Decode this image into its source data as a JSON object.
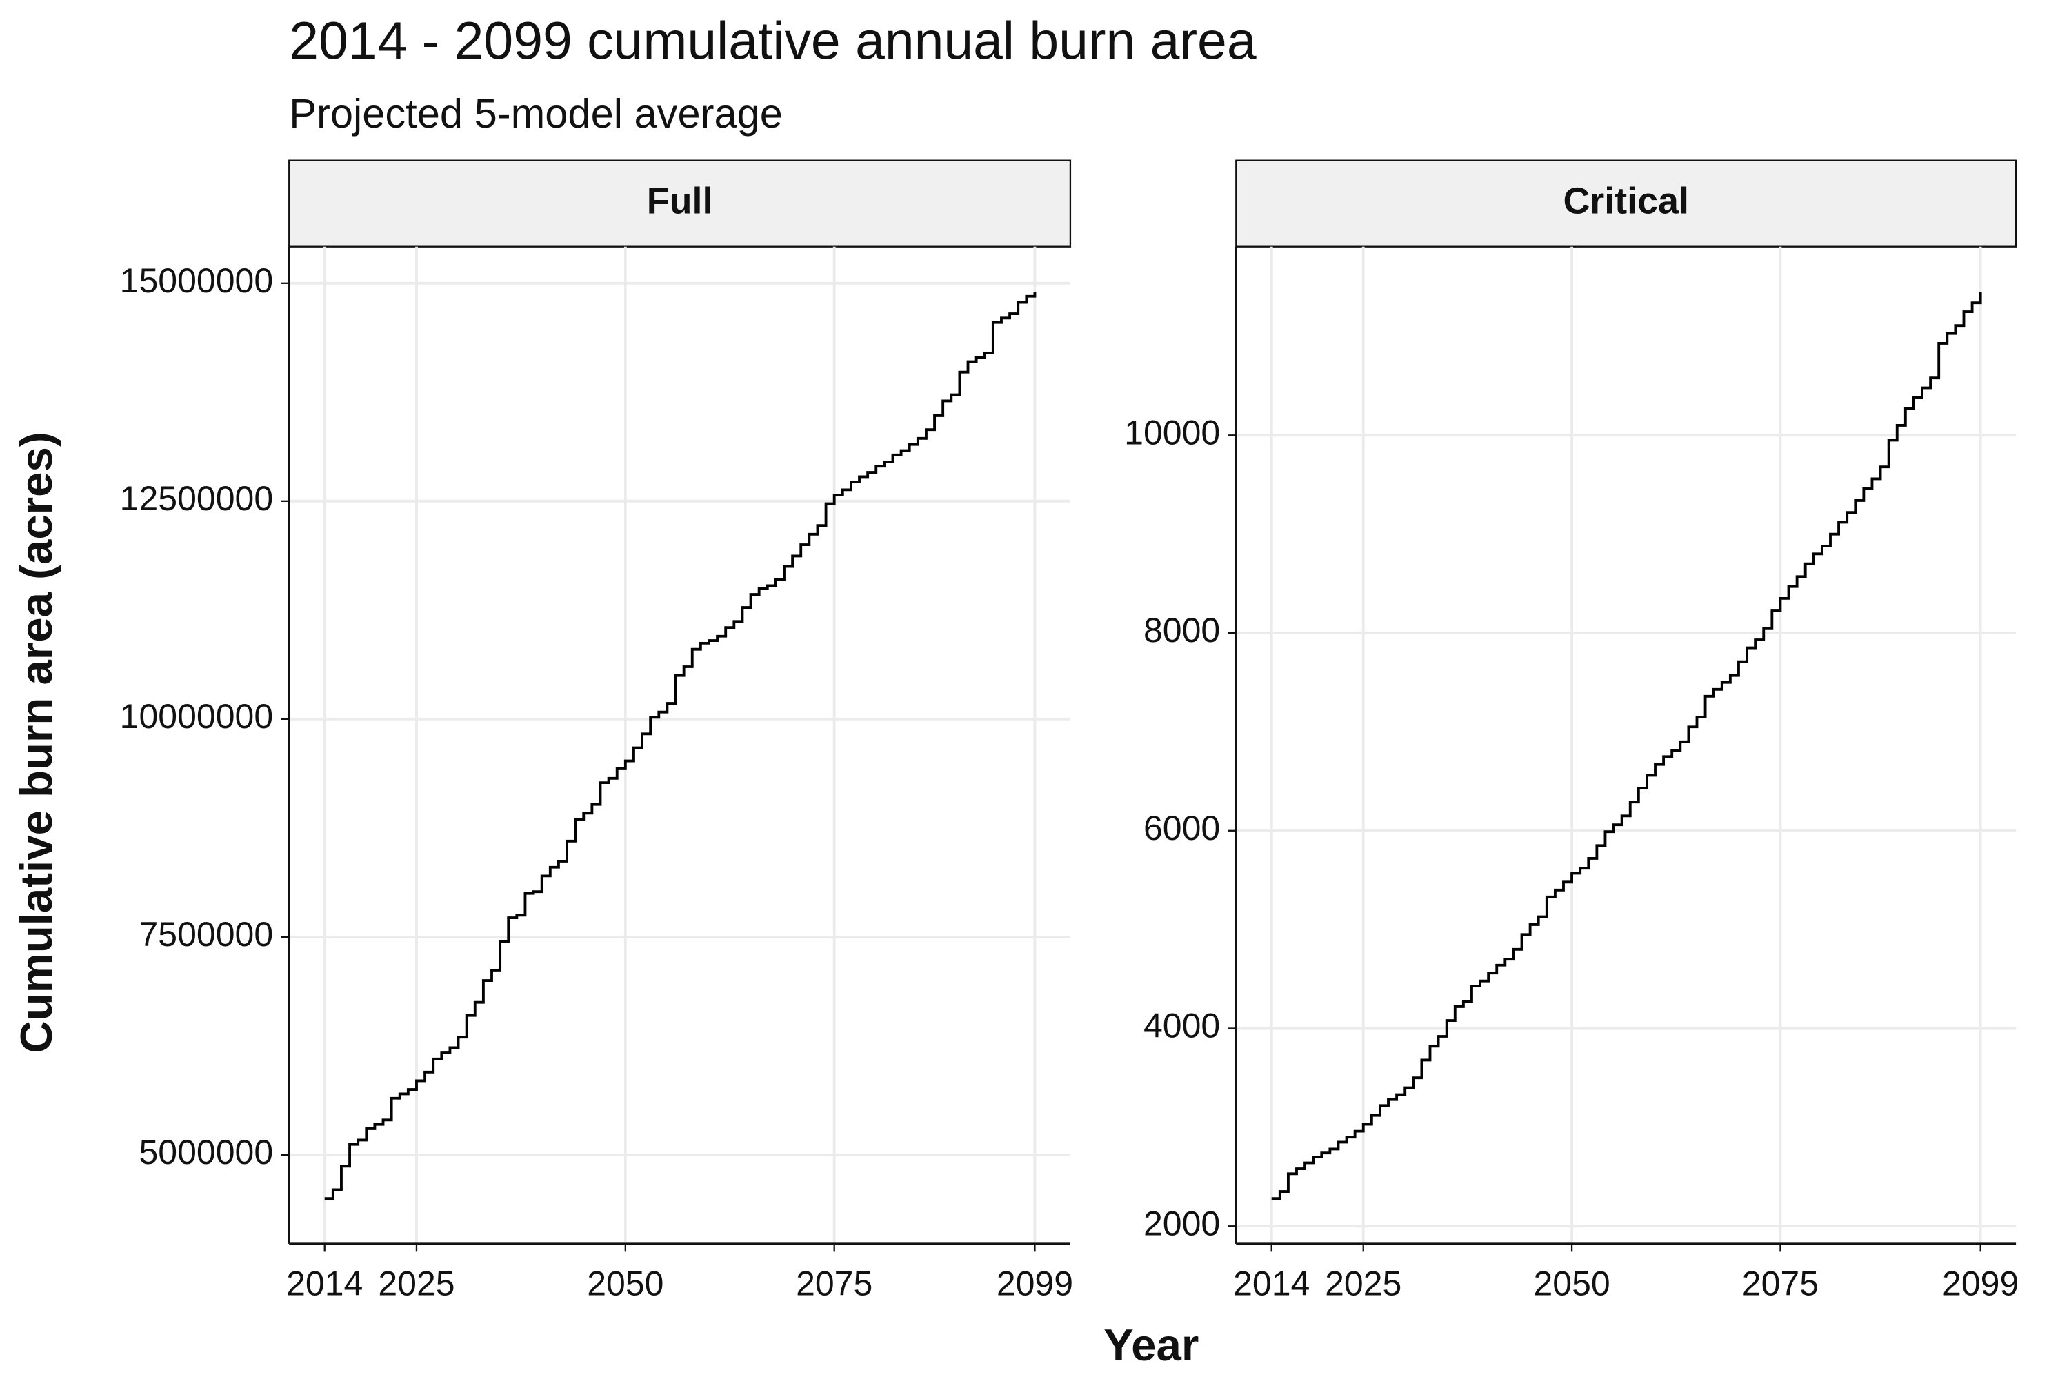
{
  "chart_data": {
    "type": "step",
    "title": "2014 - 2099 cumulative annual burn area",
    "subtitle": "Projected 5-model average",
    "x_label": "Year",
    "y_label": "Cumulative burn area (acres)",
    "x": [
      2014,
      2015,
      2016,
      2017,
      2018,
      2019,
      2020,
      2021,
      2022,
      2023,
      2024,
      2025,
      2026,
      2027,
      2028,
      2029,
      2030,
      2031,
      2032,
      2033,
      2034,
      2035,
      2036,
      2037,
      2038,
      2039,
      2040,
      2041,
      2042,
      2043,
      2044,
      2045,
      2046,
      2047,
      2048,
      2049,
      2050,
      2051,
      2052,
      2053,
      2054,
      2055,
      2056,
      2057,
      2058,
      2059,
      2060,
      2061,
      2062,
      2063,
      2064,
      2065,
      2066,
      2067,
      2068,
      2069,
      2070,
      2071,
      2072,
      2073,
      2074,
      2075,
      2076,
      2077,
      2078,
      2079,
      2080,
      2081,
      2082,
      2083,
      2084,
      2085,
      2086,
      2087,
      2088,
      2089,
      2090,
      2091,
      2092,
      2093,
      2094,
      2095,
      2096,
      2097,
      2098,
      2099
    ],
    "xlim": [
      2009.75,
      2103.25
    ],
    "xticks": [
      2014,
      2025,
      2050,
      2075,
      2099
    ],
    "grid": true,
    "color": "#000000",
    "facets": [
      {
        "title": "Full",
        "values": [
          4500000,
          4600000,
          4870000,
          5120000,
          5170000,
          5300000,
          5350000,
          5400000,
          5650000,
          5700000,
          5750000,
          5850000,
          5950000,
          6100000,
          6170000,
          6230000,
          6350000,
          6600000,
          6750000,
          7000000,
          7120000,
          7450000,
          7720000,
          7750000,
          8000000,
          8020000,
          8200000,
          8300000,
          8370000,
          8600000,
          8850000,
          8920000,
          9020000,
          9270000,
          9320000,
          9430000,
          9520000,
          9670000,
          9830000,
          10020000,
          10080000,
          10180000,
          10500000,
          10600000,
          10800000,
          10870000,
          10900000,
          10950000,
          11050000,
          11120000,
          11280000,
          11430000,
          11500000,
          11530000,
          11600000,
          11750000,
          11870000,
          12000000,
          12120000,
          12220000,
          12470000,
          12570000,
          12630000,
          12720000,
          12780000,
          12830000,
          12900000,
          12950000,
          13030000,
          13080000,
          13150000,
          13220000,
          13320000,
          13480000,
          13650000,
          13720000,
          13980000,
          14100000,
          14150000,
          14200000,
          14550000,
          14600000,
          14650000,
          14780000,
          14850000,
          14900000
        ],
        "ylim": [
          3980000,
          15420000
        ],
        "yticks": [
          5000000,
          7500000,
          10000000,
          12500000,
          15000000
        ]
      },
      {
        "title": "Critical",
        "values": [
          2280,
          2350,
          2530,
          2580,
          2640,
          2700,
          2740,
          2780,
          2850,
          2900,
          2960,
          3030,
          3120,
          3220,
          3280,
          3330,
          3400,
          3500,
          3680,
          3820,
          3920,
          4080,
          4220,
          4270,
          4430,
          4480,
          4560,
          4640,
          4700,
          4800,
          4950,
          5050,
          5130,
          5330,
          5400,
          5480,
          5570,
          5620,
          5720,
          5850,
          5990,
          6060,
          6150,
          6290,
          6430,
          6560,
          6670,
          6750,
          6810,
          6900,
          7050,
          7150,
          7360,
          7430,
          7500,
          7570,
          7710,
          7850,
          7930,
          8050,
          8230,
          8350,
          8470,
          8570,
          8700,
          8800,
          8880,
          9000,
          9120,
          9220,
          9340,
          9460,
          9560,
          9680,
          9950,
          10100,
          10270,
          10380,
          10480,
          10580,
          10930,
          11030,
          11110,
          11250,
          11340,
          11450
        ],
        "ylim": [
          1821.5,
          11908.5
        ],
        "yticks": [
          2000,
          4000,
          6000,
          8000,
          10000
        ]
      }
    ]
  }
}
